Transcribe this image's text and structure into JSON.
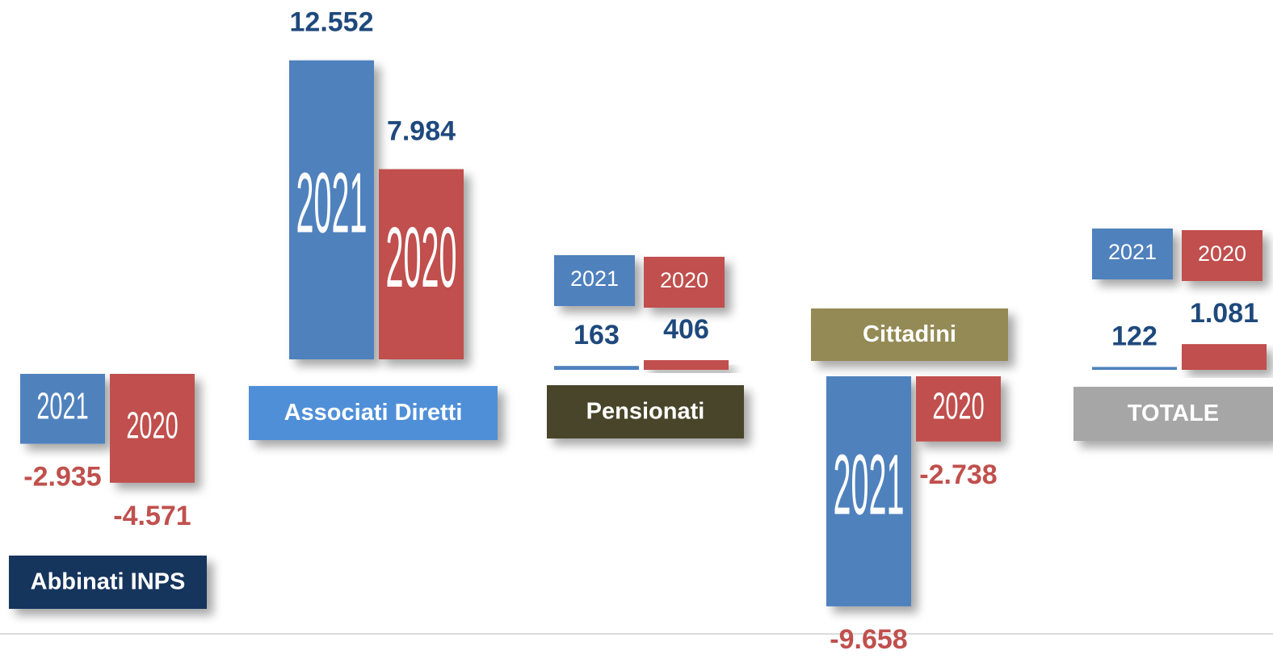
{
  "chart_data": {
    "type": "bar",
    "categories": [
      "Abbinati INPS",
      "Associati Diretti",
      "Pensionati",
      "Cittadini",
      "TOTALE"
    ],
    "category_colors": [
      "#17365d",
      "#4f8fd8",
      "#494429",
      "#948a54",
      "#a6a6a6"
    ],
    "series": [
      {
        "name": "2021",
        "color": "#4f81bd",
        "values": [
          -2935,
          12552,
          163,
          -9658,
          122
        ],
        "value_labels": [
          "-2.935",
          "12.552",
          "163",
          "-9.658",
          "122"
        ]
      },
      {
        "name": "2020",
        "color": "#c0504d",
        "values": [
          -4571,
          7984,
          406,
          -2738,
          1081
        ],
        "value_labels": [
          "-4.571",
          "7.984",
          "406",
          "-2.738",
          "1.081"
        ]
      }
    ]
  }
}
